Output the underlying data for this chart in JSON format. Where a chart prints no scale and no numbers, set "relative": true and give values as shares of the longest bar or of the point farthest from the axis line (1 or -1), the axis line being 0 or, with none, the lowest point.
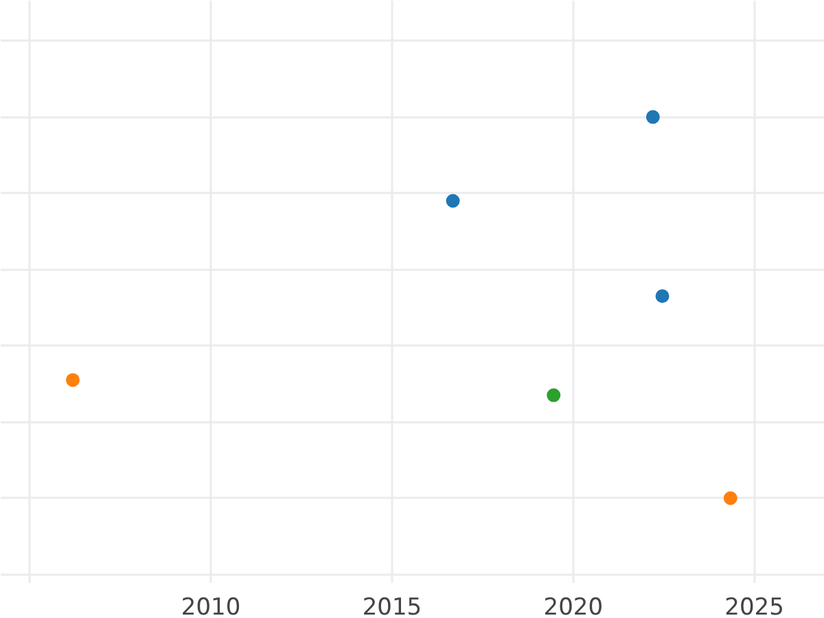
{
  "chart_data": {
    "type": "scatter",
    "relative": true,
    "xlim": [
      2004.2,
      2026.94
    ],
    "xticks": [
      {
        "value": 2005,
        "label": null
      },
      2010,
      2015,
      2020,
      2025
    ],
    "grid": true,
    "tick_labels": "x",
    "marker": "circle",
    "series": [
      {
        "color": "#1f77b4",
        "x": [
          2016.68,
          2022.2,
          2022.46
        ],
        "values": [
          0.78,
          1,
          0.53
        ]
      },
      {
        "color": "#ff7f0e",
        "x": [
          2006.19,
          2024.34
        ],
        "values": [
          0.31,
          0
        ]
      },
      {
        "color": "#2ca02c",
        "x": [
          2019.46
        ],
        "values": [
          0.27
        ]
      }
    ]
  }
}
